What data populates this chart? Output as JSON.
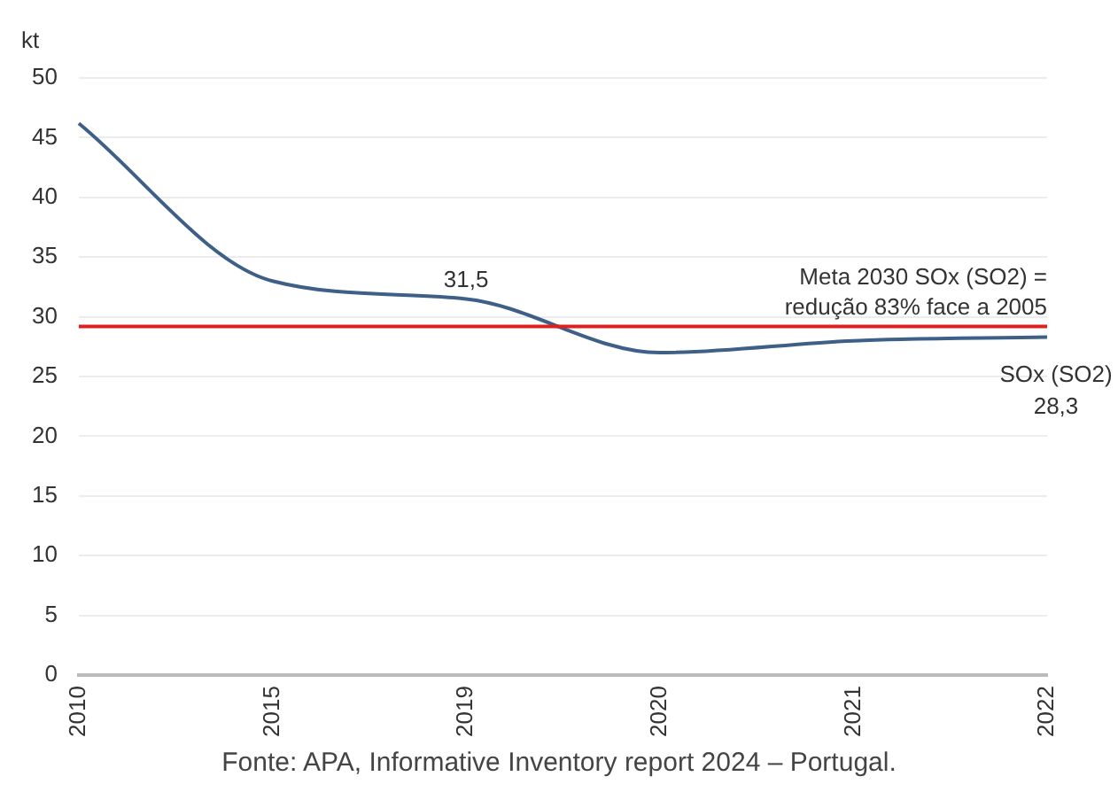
{
  "chart_data": {
    "type": "line",
    "ylabel": "kt",
    "categories": [
      "2010",
      "2015",
      "2019",
      "2020",
      "2021",
      "2022"
    ],
    "series": [
      {
        "name": "SOx (SO2)",
        "color": "#3e5f87",
        "values": [
          46.2,
          33,
          31.5,
          27,
          28,
          28.3
        ],
        "value_labels": [
          null,
          null,
          "31,5",
          null,
          null,
          "28,3"
        ]
      }
    ],
    "ylim": [
      0,
      50
    ],
    "yticks": [
      0,
      5,
      10,
      15,
      20,
      25,
      30,
      35,
      40,
      45,
      50
    ],
    "grid": "y",
    "ref_lines": [
      {
        "axis": "y",
        "value": 29.2,
        "label": "Meta 2030 SOx (SO2) = redução 83% face a 2005",
        "color": "#e02020"
      }
    ],
    "annotations": [
      "Fonte: APA, Informative Inventory report 2024 – Portugal."
    ]
  }
}
